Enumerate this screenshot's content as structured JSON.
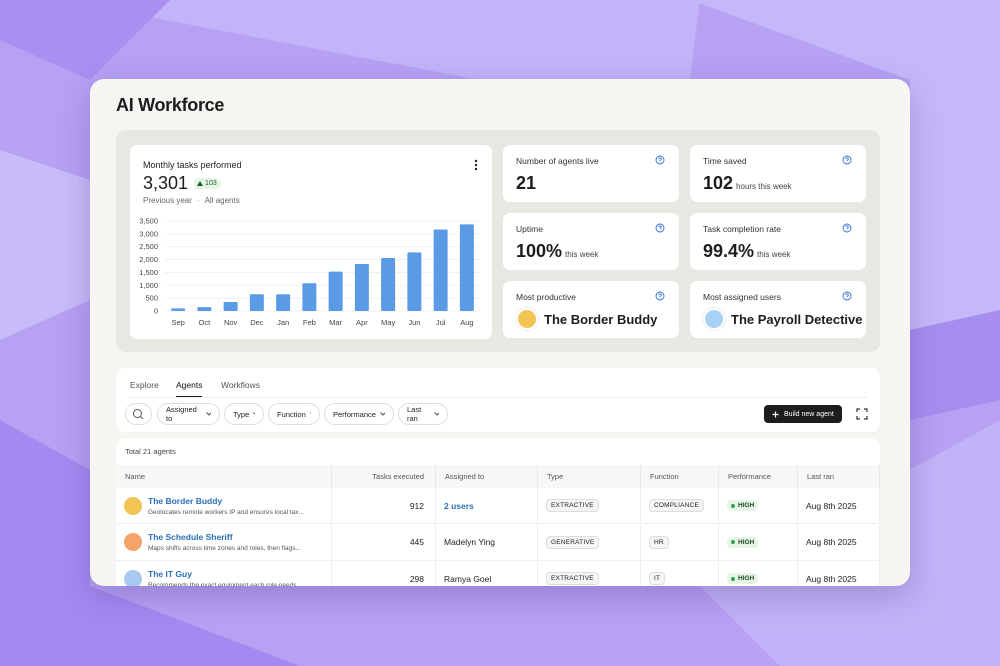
{
  "header": {
    "title": "AI Workforce"
  },
  "chart_data": {
    "type": "bar",
    "title": "Monthly tasks performed",
    "categories": [
      "Sep",
      "Oct",
      "Nov",
      "Dec",
      "Jan",
      "Feb",
      "Mar",
      "Apr",
      "May",
      "Jun",
      "Jul",
      "Aug"
    ],
    "values": [
      100,
      150,
      350,
      650,
      650,
      1080,
      1530,
      1830,
      2060,
      2280,
      3170,
      3370
    ],
    "color": "#5b9be6",
    "ylim": [
      0,
      3500
    ],
    "yticks": [
      0,
      500,
      {
        "value": 1000,
        "label": "1,000"
      },
      {
        "value": 1500,
        "label": "1,500"
      },
      {
        "value": 2000,
        "label": "2,000"
      },
      {
        "value": 2500,
        "label": "2,500"
      },
      {
        "value": 3000,
        "label": "3,000"
      },
      {
        "value": 3500,
        "label": "3,500"
      }
    ],
    "grid": true
  },
  "summary": {
    "total": "3,301",
    "change": "103",
    "period": "Previous year",
    "scope": "All agents"
  },
  "stats": [
    {
      "label": "Number of agents live",
      "value": "21"
    },
    {
      "label": "Time saved",
      "value": "102",
      "unit": "hours this week"
    },
    {
      "label": "Uptime",
      "value": "100%",
      "unit": "this week"
    },
    {
      "label": "Task completion rate",
      "value": "99.4%",
      "unit": "this week"
    },
    {
      "label": "Most productive",
      "agent": "The Border Buddy"
    },
    {
      "label": "Most assigned users",
      "agent": "The Payroll Detective"
    }
  ],
  "tabs": [
    "Explore",
    "Agents",
    "Workflows"
  ],
  "filters": [
    "Assigned to",
    "Type",
    "Function",
    "Performance",
    "Last ran"
  ],
  "actions": {
    "build": "Build new agent"
  },
  "table": {
    "total": "Total 21 agents",
    "columns": [
      "Name",
      "Tasks executed",
      "Assigned to",
      "Type",
      "Function",
      "Performance",
      "Last ran"
    ],
    "rows": [
      {
        "name": "The Border Buddy",
        "description": "Geolocates remote workers IP and ensures local tax...",
        "tasks": "912",
        "assigned": "2 users",
        "type": "EXTRACTIVE",
        "function": "COMPLIANCE",
        "performance": "HIGH",
        "last_ran": "Aug 8th 2025"
      },
      {
        "name": "The Schedule Sheriff",
        "description": "Maps shifts across time zones and roles, then flags...",
        "tasks": "445",
        "assigned": "Madelyn Ying",
        "type": "GENERATIVE",
        "function": "HR",
        "performance": "HIGH",
        "last_ran": "Aug 8th 2025"
      },
      {
        "name": "The IT Guy",
        "description": "Recommends the exact equipment each role needs...",
        "tasks": "298",
        "assigned": "Ramya Goel",
        "type": "EXTRACTIVE",
        "function": "IT",
        "performance": "HIGH",
        "last_ran": "Aug 8th 2025"
      }
    ]
  }
}
